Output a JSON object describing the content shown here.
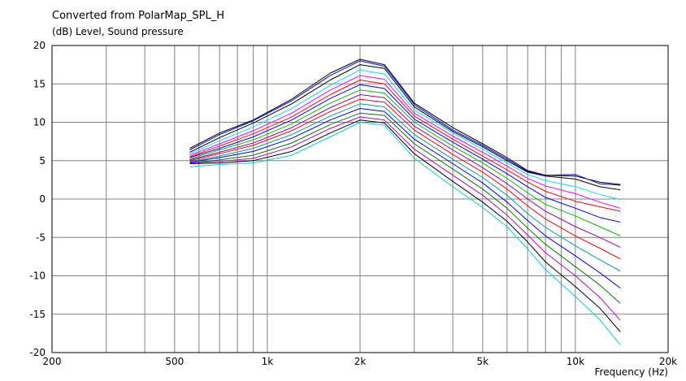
{
  "chart_data": {
    "type": "line",
    "title": "Converted from PolarMap_SPL_H",
    "ylabel": "(dB)  Level, Sound pressure",
    "xlabel": "Frequency  (Hz)",
    "x_scale": "log",
    "xlim": [
      200,
      20000
    ],
    "ylim": [
      -20,
      20
    ],
    "grid": true,
    "legend": "none",
    "x_tick_labels": [
      {
        "value": 200,
        "label": "200"
      },
      {
        "value": 500,
        "label": "500"
      },
      {
        "value": 1000,
        "label": "1k"
      },
      {
        "value": 2000,
        "label": "2k"
      },
      {
        "value": 5000,
        "label": "5k"
      },
      {
        "value": 10000,
        "label": "10k"
      },
      {
        "value": 20000,
        "label": "20k"
      }
    ],
    "y_ticks": [
      20,
      15,
      10,
      5,
      0,
      -5,
      -10,
      -15,
      -20
    ],
    "x": [
      560,
      700,
      900,
      1200,
      1600,
      2000,
      2400,
      3000,
      4000,
      5000,
      6000,
      7000,
      8000,
      10000,
      12000,
      14000
    ],
    "series": [
      {
        "color": "#000000",
        "values": [
          6.6,
          8.6,
          10.3,
          13.0,
          16.4,
          18.2,
          17.5,
          12.5,
          9.3,
          7.2,
          5.4,
          3.7,
          3.1,
          3.0,
          2.2,
          1.9
        ]
      },
      {
        "color": "#0000ff",
        "values": [
          6.4,
          8.4,
          10.2,
          12.8,
          16.1,
          18.0,
          17.3,
          12.3,
          9.0,
          7.0,
          5.2,
          3.6,
          3.1,
          3.2,
          2.0,
          1.8
        ]
      },
      {
        "color": "#000000",
        "values": [
          6.1,
          8.0,
          9.9,
          12.4,
          15.5,
          17.5,
          17.0,
          12.0,
          8.8,
          6.8,
          5.0,
          3.5,
          3.0,
          2.6,
          1.6,
          1.2
        ]
      },
      {
        "color": "#00e0ff",
        "values": [
          5.9,
          7.6,
          9.4,
          11.8,
          14.8,
          16.8,
          16.3,
          11.6,
          8.6,
          6.5,
          4.7,
          3.2,
          2.4,
          1.6,
          0.6,
          -0.1
        ]
      },
      {
        "color": "#ff00ff",
        "values": [
          5.7,
          7.2,
          8.9,
          11.2,
          14.2,
          16.1,
          15.6,
          11.2,
          8.2,
          6.1,
          4.3,
          2.7,
          1.7,
          0.7,
          -0.4,
          -1.2
        ]
      },
      {
        "color": "#ff0000",
        "values": [
          5.5,
          6.9,
          8.5,
          10.7,
          13.6,
          15.5,
          15.0,
          10.8,
          7.8,
          5.6,
          3.8,
          2.2,
          1.0,
          -0.3,
          -1.0,
          -1.6
        ]
      },
      {
        "color": "#0000ff",
        "values": [
          5.4,
          6.6,
          8.1,
          10.3,
          13.1,
          14.9,
          14.4,
          10.4,
          7.4,
          5.2,
          3.3,
          1.6,
          0.2,
          -1.2,
          -2.4,
          -3.0
        ]
      },
      {
        "color": "#00c000",
        "values": [
          5.2,
          6.4,
          7.7,
          9.8,
          12.5,
          14.2,
          13.8,
          10.0,
          6.9,
          4.7,
          2.7,
          0.8,
          -0.7,
          -2.2,
          -3.6,
          -4.8
        ]
      },
      {
        "color": "#a000a0",
        "values": [
          5.1,
          6.1,
          7.3,
          9.3,
          11.9,
          13.6,
          13.2,
          9.5,
          6.4,
          4.1,
          2.0,
          0.0,
          -1.6,
          -3.6,
          -5.0,
          -6.3
        ]
      },
      {
        "color": "#ff0000",
        "values": [
          5.0,
          5.9,
          7.0,
          8.9,
          11.4,
          13.0,
          12.6,
          9.0,
          5.8,
          3.5,
          1.3,
          -0.9,
          -2.6,
          -4.8,
          -6.4,
          -7.8
        ]
      },
      {
        "color": "#00a0a0",
        "values": [
          4.9,
          5.6,
          6.6,
          8.4,
          10.8,
          12.4,
          12.0,
          8.4,
          5.2,
          2.8,
          0.5,
          -1.9,
          -3.7,
          -6.1,
          -7.9,
          -9.4
        ]
      },
      {
        "color": "#0000ff",
        "values": [
          4.8,
          5.4,
          6.2,
          7.9,
          10.3,
          11.8,
          11.4,
          7.8,
          4.6,
          2.1,
          -0.4,
          -2.8,
          -4.8,
          -7.4,
          -9.6,
          -11.6
        ]
      },
      {
        "color": "#008000",
        "values": [
          4.7,
          5.1,
          5.7,
          7.3,
          9.7,
          11.2,
          10.9,
          7.2,
          3.9,
          1.3,
          -1.2,
          -3.8,
          -5.9,
          -8.8,
          -11.2,
          -13.6
        ]
      },
      {
        "color": "#c000c0",
        "values": [
          4.7,
          4.9,
          5.3,
          6.8,
          9.2,
          10.7,
          10.3,
          6.5,
          3.1,
          0.5,
          -2.1,
          -4.7,
          -7.0,
          -10.0,
          -12.8,
          -15.8
        ]
      },
      {
        "color": "#000000",
        "values": [
          4.6,
          4.7,
          5.0,
          6.2,
          8.6,
          10.3,
          9.9,
          5.9,
          2.3,
          -0.4,
          -2.9,
          -5.6,
          -8.2,
          -11.4,
          -14.2,
          -17.3
        ]
      },
      {
        "color": "#00d0d0",
        "values": [
          4.2,
          4.5,
          4.7,
          5.7,
          8.1,
          10.0,
          9.6,
          5.3,
          1.6,
          -1.1,
          -3.6,
          -6.5,
          -9.2,
          -12.7,
          -15.7,
          -19.0
        ]
      }
    ]
  }
}
